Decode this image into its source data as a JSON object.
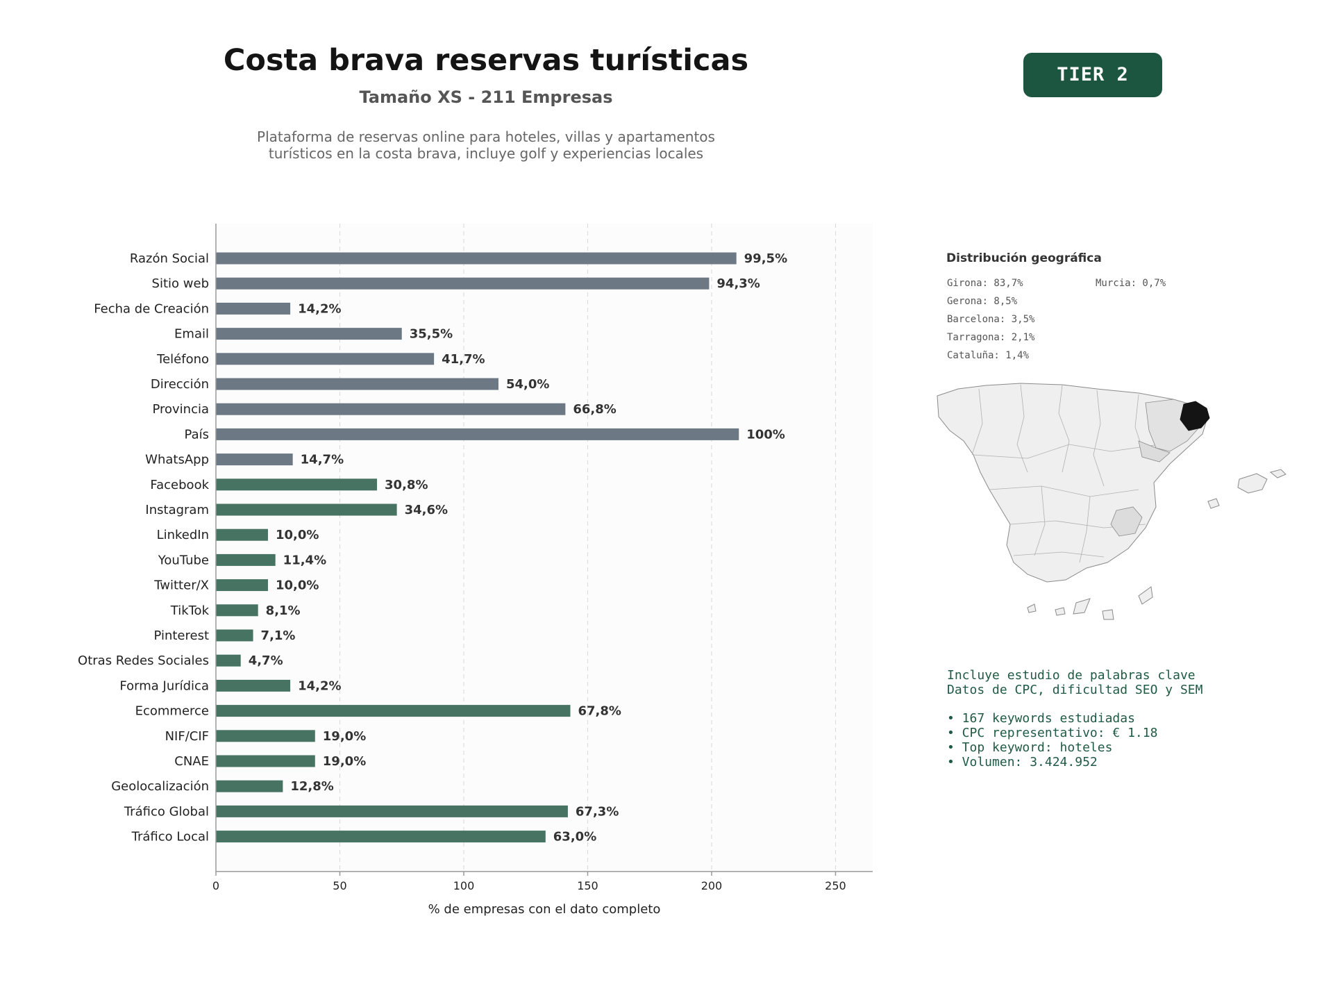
{
  "header": {
    "title": "Costa brava reservas turísticas",
    "subtitle": "Tamaño XS - 211 Empresas",
    "description_line1": "Plataforma de reservas online para hoteles, villas y apartamentos",
    "description_line2": "turísticos en la costa brava, incluye golf y experiencias locales",
    "tier_badge": "TIER 2"
  },
  "colors": {
    "gray_bar": "#6c7884",
    "green_bar": "#477362",
    "badge": "#1d5640",
    "keyword_text": "#1f5a44"
  },
  "chart_data": {
    "type": "bar",
    "orientation": "horizontal",
    "categories": [
      "Razón Social",
      "Sitio web",
      "Fecha de Creación",
      "Email",
      "Teléfono",
      "Dirección",
      "Provincia",
      "País",
      "WhatsApp",
      "Facebook",
      "Instagram",
      "LinkedIn",
      "YouTube",
      "Twitter/X",
      "TikTok",
      "Pinterest",
      "Otras Redes Sociales",
      "Forma Jurídica",
      "Ecommerce",
      "NIF/CIF",
      "CNAE",
      "Geolocalización",
      "Tráfico Global",
      "Tráfico Local"
    ],
    "values": [
      210,
      199,
      30,
      75,
      88,
      114,
      141,
      211,
      31,
      65,
      73,
      21,
      24,
      21,
      17,
      15,
      10,
      30,
      143,
      40,
      40,
      27,
      142,
      133
    ],
    "labels": [
      "99,5%",
      "94,3%",
      "14,2%",
      "35,5%",
      "41,7%",
      "54,0%",
      "66,8%",
      "100%",
      "14,7%",
      "30,8%",
      "34,6%",
      "10,0%",
      "11,4%",
      "10,0%",
      "8,1%",
      "7,1%",
      "4,7%",
      "14,2%",
      "67,8%",
      "19,0%",
      "19,0%",
      "12,8%",
      "67,3%",
      "63,0%"
    ],
    "groups": [
      "gray",
      "gray",
      "gray",
      "gray",
      "gray",
      "gray",
      "gray",
      "gray",
      "gray",
      "green",
      "green",
      "green",
      "green",
      "green",
      "green",
      "green",
      "green",
      "green",
      "green",
      "green",
      "green",
      "green",
      "green",
      "green"
    ],
    "xlabel": "% de empresas con el dato completo",
    "xlim": [
      0,
      265
    ],
    "xticks": [
      0,
      50,
      100,
      150,
      200,
      250
    ],
    "grid": "vertical dashed"
  },
  "geo": {
    "title": "Distribución geográfica",
    "items": [
      {
        "label": "Girona: 83,7%"
      },
      {
        "label": "Gerona: 8,5%"
      },
      {
        "label": "Barcelona: 3,5%"
      },
      {
        "label": "Tarragona: 2,1%"
      },
      {
        "label": "Cataluña: 1,4%"
      },
      {
        "label": "Murcia: 0,7%"
      }
    ]
  },
  "keywords": {
    "line1": "Incluye estudio de palabras clave",
    "line2": "Datos de CPC, dificultad SEO y SEM",
    "bullet1": "• 167 keywords estudiadas",
    "bullet2": "• CPC representativo: € 1.18",
    "bullet3": "• Top keyword: hoteles",
    "bullet4": "• Volumen: 3.424.952"
  }
}
